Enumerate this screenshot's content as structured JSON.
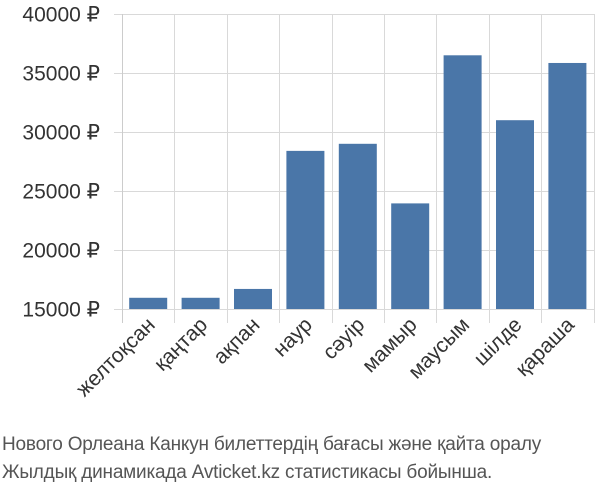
{
  "chart_data": {
    "type": "bar",
    "categories": [
      "желтоқсан",
      "қаңтар",
      "ақпан",
      "наур",
      "сәуір",
      "мамыр",
      "маусым",
      "шілде",
      "қараша"
    ],
    "values": [
      15950,
      15950,
      16700,
      28400,
      29000,
      23950,
      36500,
      31000,
      35850
    ],
    "ylim": [
      15000,
      40000
    ],
    "yticks": [
      {
        "value": 15000,
        "label": "15000 ₽"
      },
      {
        "value": 20000,
        "label": "20000 ₽"
      },
      {
        "value": 25000,
        "label": "25000 ₽"
      },
      {
        "value": 30000,
        "label": "30000 ₽"
      },
      {
        "value": 35000,
        "label": "35000 ₽"
      },
      {
        "value": 40000,
        "label": "40000 ₽"
      }
    ],
    "grid": true,
    "bar_color": "#4a76a8",
    "grid_color": "#d9d9d9",
    "title": "",
    "xlabel": "",
    "ylabel": ""
  },
  "caption": {
    "line1": "Нового Орлеана Канкун билеттердің бағасы және қайта оралу",
    "line2": "Жылдық динамикада Avticket.kz статистикасы бойынша."
  }
}
